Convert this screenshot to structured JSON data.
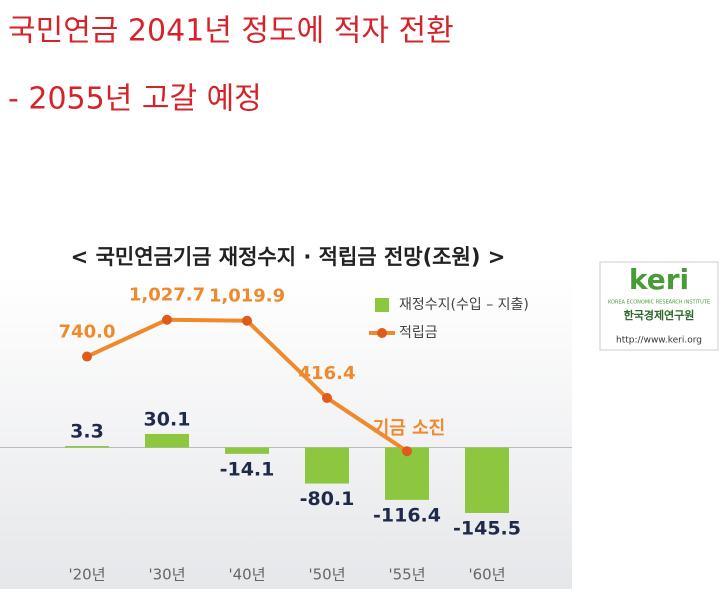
{
  "header": {
    "line1": "국민연금 2041년 정도에 적자 전환",
    "line2": "- 2055년 고갈 예정"
  },
  "logo": {
    "brand": "keri",
    "english": "KOREA ECONOMIC RESEARCH INSTITUTE",
    "korean": "한국경제연구원",
    "url": "http://www.keri.org"
  },
  "chart_data": {
    "type": "combo",
    "title": "< 국민연금기금 재정수지 · 적립금 전망(조원) >",
    "categories": [
      "'20년",
      "'30년",
      "'40년",
      "'50년",
      "'55년",
      "'60년"
    ],
    "series": [
      {
        "name": "재정수지(수입 – 지출)",
        "type": "bar",
        "color": "#8dc63f",
        "values": [
          3.3,
          30.1,
          -14.1,
          -80.1,
          -116.4,
          -145.5
        ]
      },
      {
        "name": "적립금",
        "type": "line",
        "axis": "y2",
        "color": "#f0892c",
        "values": [
          740.0,
          1027.7,
          1019.9,
          416.4,
          0,
          null
        ],
        "value_labels": [
          "740.0",
          "1,027.7",
          "1,019.9",
          "416.4",
          null,
          null
        ]
      }
    ],
    "annotation": "기금 소진",
    "ylim": [
      -250,
      350
    ],
    "y2lim": [
      -850,
      1260
    ],
    "legend": "upper right"
  }
}
